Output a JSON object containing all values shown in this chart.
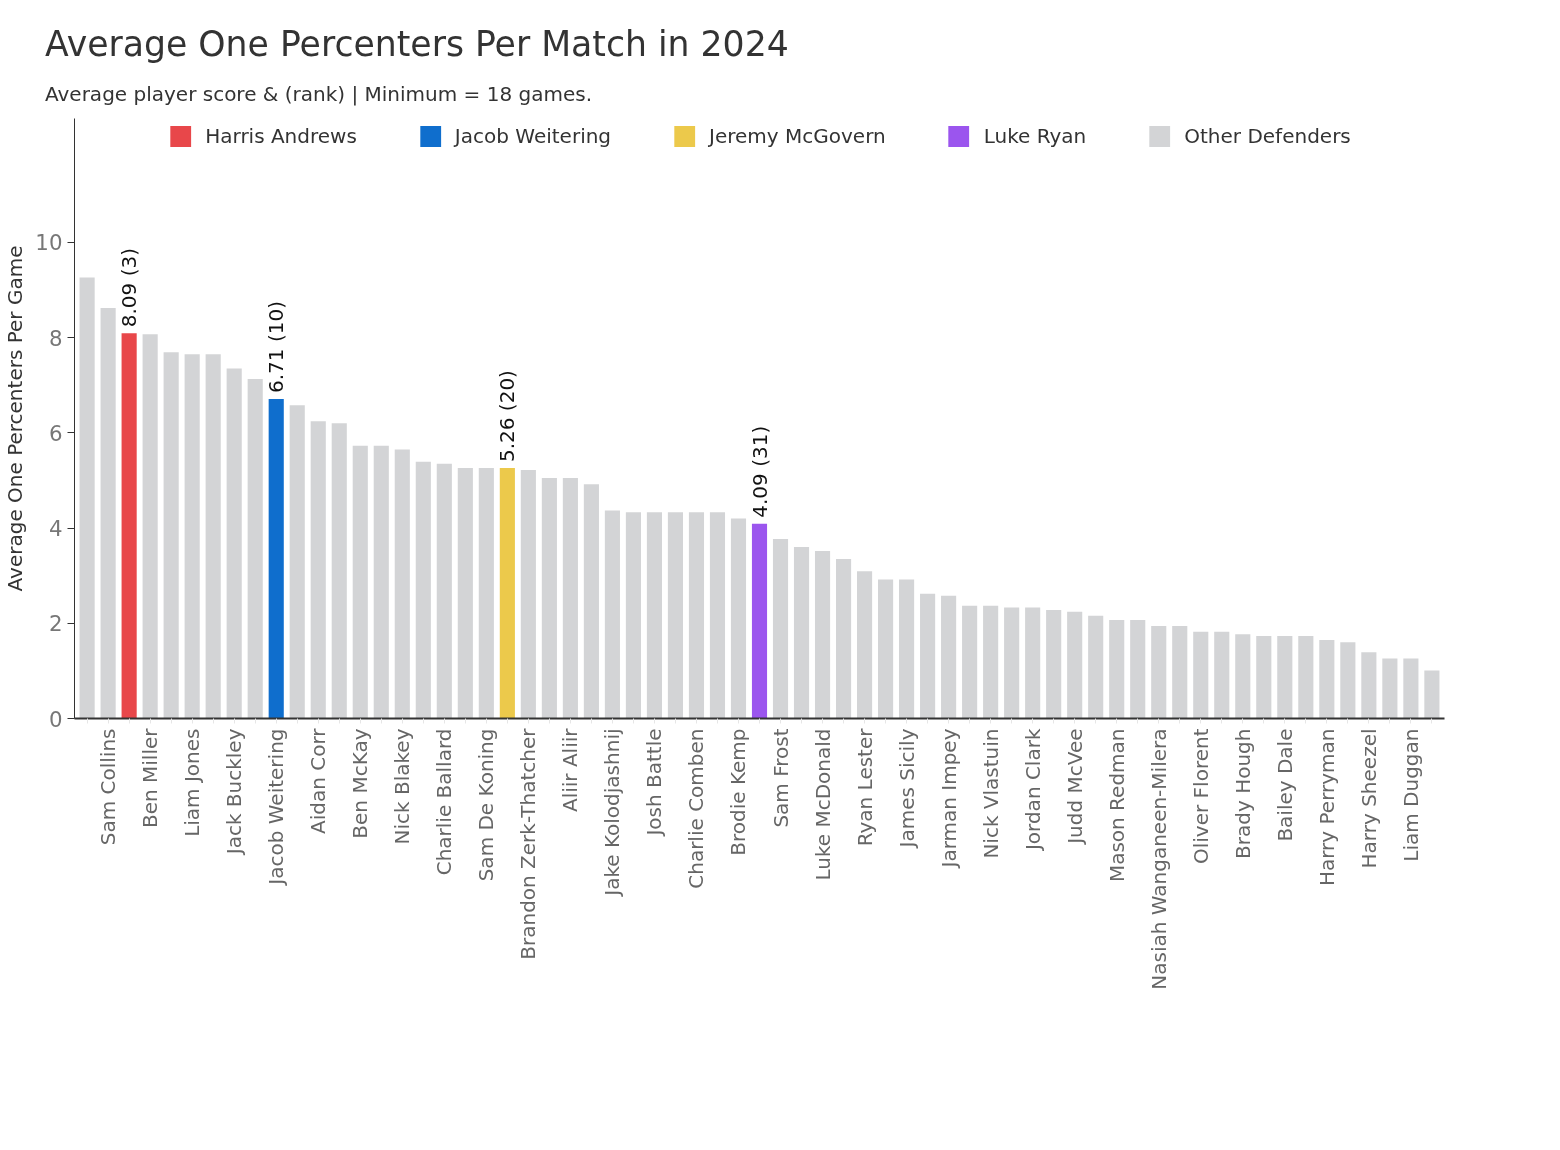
{
  "chart_data": {
    "type": "bar",
    "title": "Average One Percenters Per Match in 2024",
    "subtitle": "Average player score & (rank) | Minimum = 18 games.",
    "ylabel": "Average One Percenters Per Game",
    "categories": [
      null,
      "Sam Collins",
      null,
      "Ben Miller",
      null,
      "Liam Jones",
      null,
      "Jack Buckley",
      null,
      "Jacob Weitering",
      null,
      "Aidan Corr",
      null,
      "Ben McKay",
      null,
      "Nick Blakey",
      null,
      "Charlie Ballard",
      null,
      "Sam De Koning",
      null,
      "Brandon Zerk-Thatcher",
      null,
      "Aliir Aliir",
      null,
      "Jake Kolodjashnij",
      null,
      "Josh Battle",
      null,
      "Charlie Comben",
      null,
      "Brodie Kemp",
      null,
      "Sam Frost",
      null,
      "Luke McDonald",
      null,
      "Ryan Lester",
      null,
      "James Sicily",
      null,
      "Jarman Impey",
      null,
      "Nick Vlastuin",
      null,
      "Jordan Clark",
      null,
      "Judd McVee",
      null,
      "Mason Redman",
      null,
      "Nasiah Wanganeen-Milera",
      null,
      "Oliver Florent",
      null,
      "Brady Hough",
      null,
      "Bailey Dale",
      null,
      "Harry Perryman",
      null,
      "Harry Sheezel",
      null,
      "Liam Duggan",
      null
    ],
    "series": [
      {
        "name": "Harris Andrews",
        "color": "#e8474a",
        "values": [
          null,
          null,
          8.09,
          null,
          null,
          null,
          null,
          null,
          null,
          null,
          null,
          null,
          null,
          null,
          null,
          null,
          null,
          null,
          null,
          null,
          null,
          null,
          null,
          null,
          null,
          null,
          null,
          null,
          null,
          null,
          null,
          null,
          null,
          null,
          null,
          null,
          null,
          null,
          null,
          null,
          null,
          null,
          null,
          null,
          null,
          null,
          null,
          null,
          null,
          null,
          null,
          null,
          null,
          null,
          null,
          null,
          null,
          null,
          null,
          null,
          null,
          null,
          null,
          null,
          null
        ],
        "value_labels": [
          null,
          null,
          "8.09 (3)",
          null,
          null,
          null,
          null,
          null,
          null,
          null,
          null,
          null,
          null,
          null,
          null,
          null,
          null,
          null,
          null,
          null,
          null,
          null,
          null,
          null,
          null,
          null,
          null,
          null,
          null,
          null,
          null,
          null,
          null,
          null,
          null,
          null,
          null,
          null,
          null,
          null,
          null,
          null,
          null,
          null,
          null,
          null,
          null,
          null,
          null,
          null,
          null,
          null,
          null,
          null,
          null,
          null,
          null,
          null,
          null,
          null,
          null,
          null,
          null,
          null,
          null
        ]
      },
      {
        "name": "Jacob Weitering",
        "color": "#0f6ecd",
        "values": [
          null,
          null,
          null,
          null,
          null,
          null,
          null,
          null,
          null,
          6.71,
          null,
          null,
          null,
          null,
          null,
          null,
          null,
          null,
          null,
          null,
          null,
          null,
          null,
          null,
          null,
          null,
          null,
          null,
          null,
          null,
          null,
          null,
          null,
          null,
          null,
          null,
          null,
          null,
          null,
          null,
          null,
          null,
          null,
          null,
          null,
          null,
          null,
          null,
          null,
          null,
          null,
          null,
          null,
          null,
          null,
          null,
          null,
          null,
          null,
          null,
          null,
          null,
          null,
          null,
          null
        ],
        "value_labels": [
          null,
          null,
          null,
          null,
          null,
          null,
          null,
          null,
          null,
          "6.71 (10)",
          null,
          null,
          null,
          null,
          null,
          null,
          null,
          null,
          null,
          null,
          null,
          null,
          null,
          null,
          null,
          null,
          null,
          null,
          null,
          null,
          null,
          null,
          null,
          null,
          null,
          null,
          null,
          null,
          null,
          null,
          null,
          null,
          null,
          null,
          null,
          null,
          null,
          null,
          null,
          null,
          null,
          null,
          null,
          null,
          null,
          null,
          null,
          null,
          null,
          null,
          null,
          null,
          null,
          null,
          null
        ]
      },
      {
        "name": "Jeremy McGovern",
        "color": "#ecc94b",
        "values": [
          null,
          null,
          null,
          null,
          null,
          null,
          null,
          null,
          null,
          null,
          null,
          null,
          null,
          null,
          null,
          null,
          null,
          null,
          null,
          null,
          5.26,
          null,
          null,
          null,
          null,
          null,
          null,
          null,
          null,
          null,
          null,
          null,
          null,
          null,
          null,
          null,
          null,
          null,
          null,
          null,
          null,
          null,
          null,
          null,
          null,
          null,
          null,
          null,
          null,
          null,
          null,
          null,
          null,
          null,
          null,
          null,
          null,
          null,
          null,
          null,
          null,
          null,
          null,
          null,
          null
        ],
        "value_labels": [
          null,
          null,
          null,
          null,
          null,
          null,
          null,
          null,
          null,
          null,
          null,
          null,
          null,
          null,
          null,
          null,
          null,
          null,
          null,
          null,
          "5.26 (20)",
          null,
          null,
          null,
          null,
          null,
          null,
          null,
          null,
          null,
          null,
          null,
          null,
          null,
          null,
          null,
          null,
          null,
          null,
          null,
          null,
          null,
          null,
          null,
          null,
          null,
          null,
          null,
          null,
          null,
          null,
          null,
          null,
          null,
          null,
          null,
          null,
          null,
          null,
          null,
          null,
          null,
          null,
          null,
          null
        ]
      },
      {
        "name": "Luke Ryan",
        "color": "#9b55ee",
        "values": [
          null,
          null,
          null,
          null,
          null,
          null,
          null,
          null,
          null,
          null,
          null,
          null,
          null,
          null,
          null,
          null,
          null,
          null,
          null,
          null,
          null,
          null,
          null,
          null,
          null,
          null,
          null,
          null,
          null,
          null,
          null,
          null,
          4.09,
          null,
          null,
          null,
          null,
          null,
          null,
          null,
          null,
          null,
          null,
          null,
          null,
          null,
          null,
          null,
          null,
          null,
          null,
          null,
          null,
          null,
          null,
          null,
          null,
          null,
          null,
          null,
          null,
          null,
          null,
          null,
          null
        ],
        "value_labels": [
          null,
          null,
          null,
          null,
          null,
          null,
          null,
          null,
          null,
          null,
          null,
          null,
          null,
          null,
          null,
          null,
          null,
          null,
          null,
          null,
          null,
          null,
          null,
          null,
          null,
          null,
          null,
          null,
          null,
          null,
          null,
          null,
          "4.09 (31)",
          null,
          null,
          null,
          null,
          null,
          null,
          null,
          null,
          null,
          null,
          null,
          null,
          null,
          null,
          null,
          null,
          null,
          null,
          null,
          null,
          null,
          null,
          null,
          null,
          null,
          null,
          null,
          null,
          null,
          null,
          null,
          null
        ]
      },
      {
        "name": "Other Defenders",
        "color": "#d3d4d6",
        "values": [
          9.26,
          8.62,
          null,
          8.07,
          7.69,
          7.65,
          7.65,
          7.35,
          7.13,
          null,
          6.58,
          6.24,
          6.2,
          5.73,
          5.73,
          5.65,
          5.39,
          5.35,
          5.26,
          5.26,
          null,
          5.22,
          5.05,
          5.05,
          4.92,
          4.37,
          4.33,
          4.33,
          4.33,
          4.33,
          4.33,
          4.2,
          null,
          3.77,
          3.6,
          3.52,
          3.35,
          3.09,
          2.92,
          2.92,
          2.62,
          2.58,
          2.37,
          2.37,
          2.33,
          2.33,
          2.28,
          2.24,
          2.16,
          2.07,
          2.07,
          1.94,
          1.94,
          1.82,
          1.82,
          1.77,
          1.73,
          1.73,
          1.73,
          1.65,
          1.6,
          1.39,
          1.26,
          1.26,
          1.01
        ]
      }
    ],
    "ylim": [
      0,
      12.6
    ],
    "yticks": [
      0,
      2,
      4,
      6,
      8,
      10
    ],
    "grid": false,
    "legend": "top"
  }
}
